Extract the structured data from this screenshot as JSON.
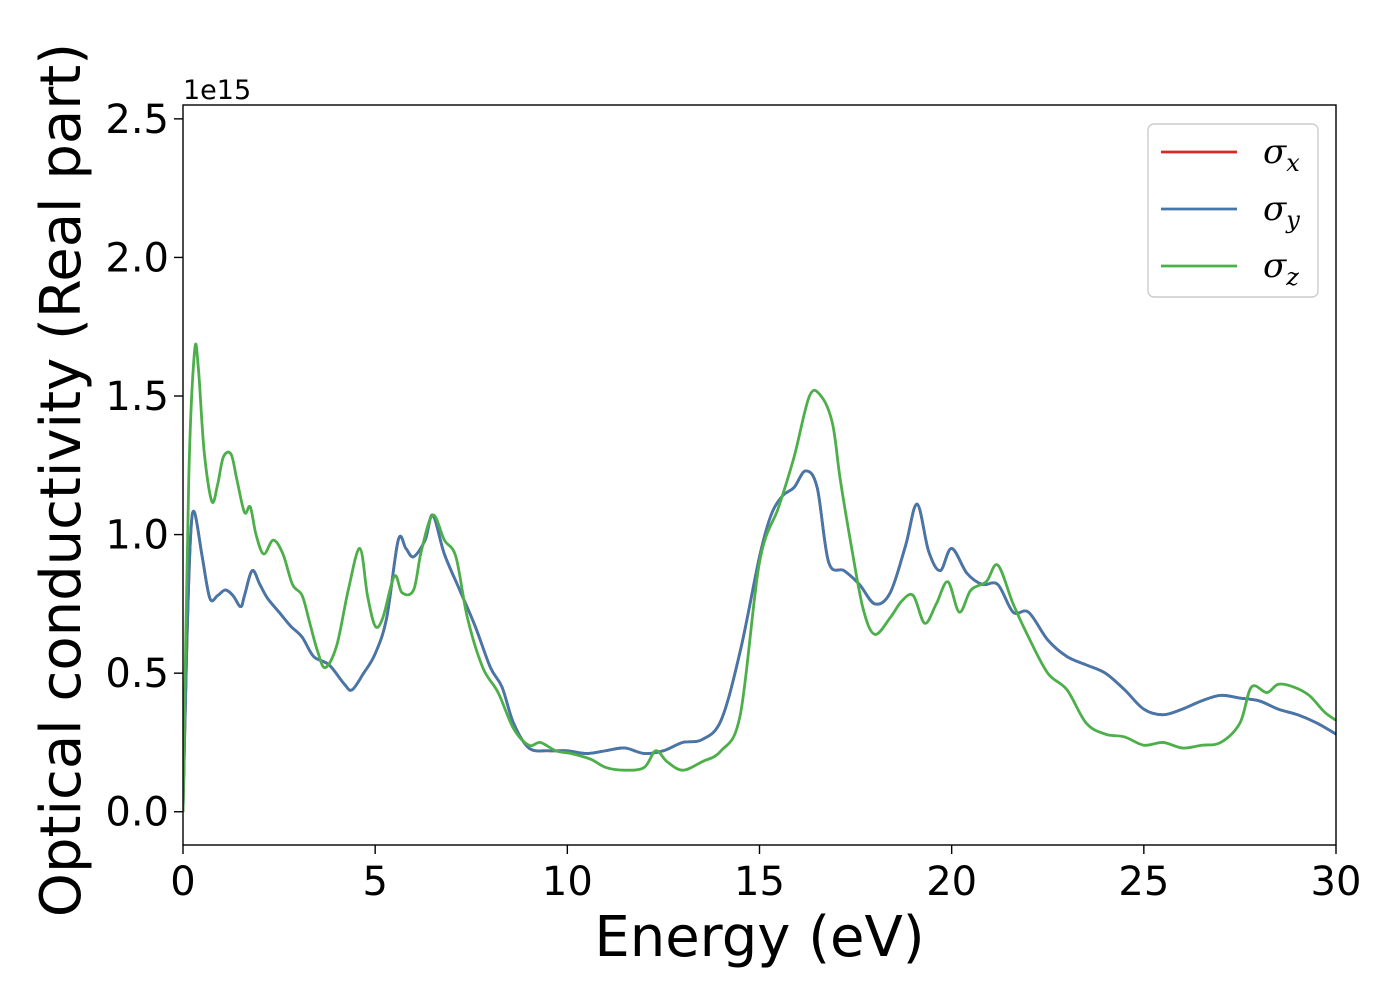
{
  "chart_data": {
    "type": "line",
    "title": "",
    "xlabel": "Energy (eV)",
    "ylabel": "Optical conductivity (Real part)",
    "y_offset_label": "1e15",
    "xlim": [
      0,
      30
    ],
    "ylim": [
      -0.12,
      2.55
    ],
    "x_ticks": [
      0,
      5,
      10,
      15,
      20,
      25,
      30
    ],
    "x_tick_labels": [
      "0",
      "5",
      "10",
      "15",
      "20",
      "25",
      "30"
    ],
    "y_ticks": [
      0.0,
      0.5,
      1.0,
      1.5,
      2.0,
      2.5
    ],
    "y_tick_labels": [
      "0.0",
      "0.5",
      "1.0",
      "1.5",
      "2.0",
      "2.5"
    ],
    "grid": false,
    "legend_position": "top-right",
    "series": [
      {
        "name": "σx",
        "symbol": "σ",
        "subscript": "x",
        "color": "#d62728",
        "x": [
          0,
          0.1,
          0.2,
          0.3,
          0.5,
          0.7,
          0.9,
          1.1,
          1.3,
          1.5,
          1.6,
          1.8,
          2.0,
          2.2,
          2.5,
          2.8,
          3.1,
          3.4,
          3.8,
          4.2,
          4.4,
          4.7,
          5.0,
          5.3,
          5.6,
          5.8,
          6.0,
          6.3,
          6.5,
          6.8,
          7.2,
          7.6,
          8.0,
          8.3,
          8.6,
          9.0,
          9.5,
          10.0,
          10.5,
          11.0,
          11.5,
          12.0,
          12.5,
          13.0,
          13.5,
          14.0,
          14.5,
          15.0,
          15.3,
          15.6,
          15.9,
          16.2,
          16.5,
          16.8,
          17.2,
          17.6,
          18.0,
          18.4,
          18.8,
          19.1,
          19.4,
          19.7,
          20.0,
          20.4,
          20.8,
          21.2,
          21.6,
          22.0,
          22.5,
          23.0,
          23.5,
          24.0,
          24.5,
          25.0,
          25.5,
          26.0,
          26.5,
          27.0,
          27.5,
          28.0,
          28.5,
          29.0,
          29.5,
          30.0
        ],
        "values": [
          0.0,
          0.6,
          1.0,
          1.08,
          0.92,
          0.77,
          0.78,
          0.8,
          0.78,
          0.74,
          0.78,
          0.87,
          0.82,
          0.77,
          0.72,
          0.67,
          0.63,
          0.56,
          0.53,
          0.46,
          0.44,
          0.5,
          0.57,
          0.7,
          0.98,
          0.95,
          0.92,
          0.98,
          1.07,
          0.93,
          0.8,
          0.67,
          0.52,
          0.45,
          0.32,
          0.23,
          0.22,
          0.22,
          0.21,
          0.22,
          0.23,
          0.21,
          0.22,
          0.25,
          0.26,
          0.33,
          0.58,
          0.92,
          1.07,
          1.14,
          1.17,
          1.23,
          1.17,
          0.9,
          0.87,
          0.82,
          0.75,
          0.79,
          0.96,
          1.11,
          0.94,
          0.87,
          0.95,
          0.86,
          0.82,
          0.82,
          0.72,
          0.72,
          0.62,
          0.56,
          0.53,
          0.5,
          0.44,
          0.37,
          0.35,
          0.37,
          0.4,
          0.42,
          0.41,
          0.4,
          0.37,
          0.35,
          0.32,
          0.28
        ]
      },
      {
        "name": "σy",
        "symbol": "σ",
        "subscript": "y",
        "color": "#4477aa",
        "x": [
          0,
          0.1,
          0.2,
          0.3,
          0.5,
          0.7,
          0.9,
          1.1,
          1.3,
          1.5,
          1.6,
          1.8,
          2.0,
          2.2,
          2.5,
          2.8,
          3.1,
          3.4,
          3.8,
          4.2,
          4.4,
          4.7,
          5.0,
          5.3,
          5.6,
          5.8,
          6.0,
          6.3,
          6.5,
          6.8,
          7.2,
          7.6,
          8.0,
          8.3,
          8.6,
          9.0,
          9.5,
          10.0,
          10.5,
          11.0,
          11.5,
          12.0,
          12.5,
          13.0,
          13.5,
          14.0,
          14.5,
          15.0,
          15.3,
          15.6,
          15.9,
          16.2,
          16.5,
          16.8,
          17.2,
          17.6,
          18.0,
          18.4,
          18.8,
          19.1,
          19.4,
          19.7,
          20.0,
          20.4,
          20.8,
          21.2,
          21.6,
          22.0,
          22.5,
          23.0,
          23.5,
          24.0,
          24.5,
          25.0,
          25.5,
          26.0,
          26.5,
          27.0,
          27.5,
          28.0,
          28.5,
          29.0,
          29.5,
          30.0
        ],
        "values": [
          0.0,
          0.6,
          1.0,
          1.08,
          0.92,
          0.77,
          0.78,
          0.8,
          0.78,
          0.74,
          0.78,
          0.87,
          0.82,
          0.77,
          0.72,
          0.67,
          0.63,
          0.56,
          0.53,
          0.46,
          0.44,
          0.5,
          0.57,
          0.7,
          0.98,
          0.95,
          0.92,
          0.98,
          1.07,
          0.93,
          0.8,
          0.67,
          0.52,
          0.45,
          0.32,
          0.23,
          0.22,
          0.22,
          0.21,
          0.22,
          0.23,
          0.21,
          0.22,
          0.25,
          0.26,
          0.33,
          0.58,
          0.92,
          1.07,
          1.14,
          1.17,
          1.23,
          1.17,
          0.9,
          0.87,
          0.82,
          0.75,
          0.79,
          0.96,
          1.11,
          0.94,
          0.87,
          0.95,
          0.86,
          0.82,
          0.82,
          0.72,
          0.72,
          0.62,
          0.56,
          0.53,
          0.5,
          0.44,
          0.37,
          0.35,
          0.37,
          0.4,
          0.42,
          0.41,
          0.4,
          0.37,
          0.35,
          0.32,
          0.28
        ]
      },
      {
        "name": "σz",
        "symbol": "σ",
        "subscript": "z",
        "color": "#4daf4a",
        "x": [
          0,
          0.15,
          0.3,
          0.4,
          0.55,
          0.75,
          0.9,
          1.05,
          1.25,
          1.4,
          1.6,
          1.75,
          1.9,
          2.1,
          2.35,
          2.6,
          2.85,
          3.1,
          3.3,
          3.5,
          3.7,
          4.0,
          4.3,
          4.6,
          4.8,
          5.0,
          5.2,
          5.5,
          5.7,
          6.0,
          6.2,
          6.5,
          6.8,
          7.1,
          7.4,
          7.8,
          8.2,
          8.6,
          9.0,
          9.3,
          9.7,
          10.1,
          10.6,
          11.0,
          11.5,
          12.0,
          12.3,
          12.6,
          13.0,
          13.5,
          14.0,
          14.5,
          15.0,
          15.5,
          15.9,
          16.3,
          16.6,
          16.9,
          17.1,
          17.4,
          17.7,
          18.0,
          18.4,
          18.7,
          19.0,
          19.3,
          19.6,
          19.9,
          20.2,
          20.5,
          20.9,
          21.2,
          21.6,
          22.0,
          22.5,
          23.0,
          23.5,
          24.0,
          24.5,
          25.0,
          25.5,
          26.0,
          26.5,
          27.0,
          27.5,
          27.8,
          28.2,
          28.5,
          28.9,
          29.3,
          29.7,
          30.0
        ],
        "values": [
          0.0,
          1.2,
          1.66,
          1.6,
          1.3,
          1.12,
          1.18,
          1.28,
          1.29,
          1.2,
          1.08,
          1.1,
          1.0,
          0.93,
          0.98,
          0.93,
          0.82,
          0.78,
          0.68,
          0.58,
          0.52,
          0.6,
          0.8,
          0.95,
          0.78,
          0.67,
          0.7,
          0.85,
          0.79,
          0.8,
          0.94,
          1.07,
          0.98,
          0.92,
          0.7,
          0.52,
          0.43,
          0.3,
          0.24,
          0.25,
          0.22,
          0.21,
          0.19,
          0.16,
          0.15,
          0.16,
          0.22,
          0.18,
          0.15,
          0.18,
          0.22,
          0.35,
          0.9,
          1.1,
          1.28,
          1.5,
          1.5,
          1.4,
          1.2,
          0.95,
          0.73,
          0.64,
          0.7,
          0.76,
          0.78,
          0.68,
          0.75,
          0.83,
          0.72,
          0.8,
          0.83,
          0.89,
          0.75,
          0.63,
          0.5,
          0.44,
          0.32,
          0.28,
          0.27,
          0.24,
          0.25,
          0.23,
          0.24,
          0.25,
          0.32,
          0.45,
          0.43,
          0.46,
          0.45,
          0.42,
          0.36,
          0.33
        ]
      }
    ]
  }
}
